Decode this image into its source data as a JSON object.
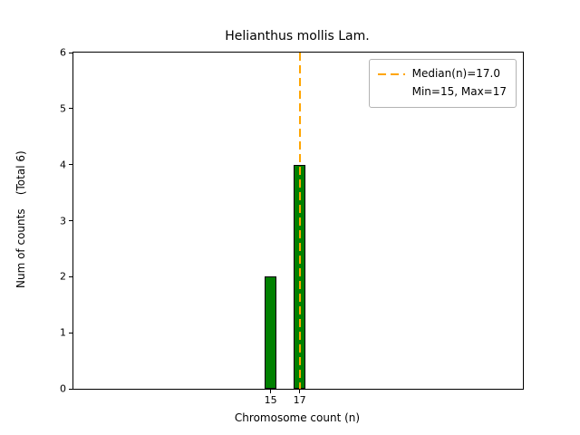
{
  "chart_data": {
    "type": "bar",
    "title": "Helianthus mollis Lam.",
    "xlabel": "Chromosome count (n)",
    "ylabel": "Num of counts    (Total 6)",
    "categories": [
      15,
      17
    ],
    "values": [
      2,
      4
    ],
    "total_counts": 6,
    "bar_width": 0.8,
    "bar_color": "#008000",
    "bar_edge_color": "#000000",
    "xlim": [
      1.4,
      32.4
    ],
    "ylim": [
      0,
      6
    ],
    "yticks": [
      0,
      1,
      2,
      3,
      4,
      5,
      6
    ],
    "xticks": [
      15,
      17
    ],
    "grid": false,
    "median_line": {
      "x": 17,
      "value": 17.0,
      "color": "#FFA500",
      "style": "dashed"
    },
    "legend_position": "upper right",
    "legend": [
      "Median(n)=17.0",
      "Min=15, Max=17"
    ]
  }
}
